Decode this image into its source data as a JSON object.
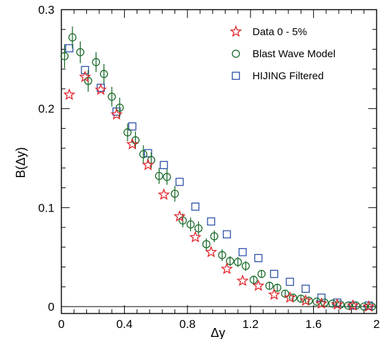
{
  "chart_data": {
    "type": "scatter",
    "xlabel": "Δy",
    "ylabel": "B(Δy)",
    "xlim": [
      0,
      2
    ],
    "ylim": [
      -0.007,
      0.3
    ],
    "x_ticks": [
      0,
      0.4,
      0.8,
      1.2,
      1.6,
      2
    ],
    "x_tick_labels": [
      "0",
      "0.4",
      "0.8",
      "1.2",
      "1.6",
      "2"
    ],
    "y_ticks": [
      0,
      0.1,
      0.2,
      0.3
    ],
    "y_tick_labels": [
      "0",
      "0.1",
      "0.2",
      "0.3"
    ],
    "zero_line": true,
    "grid": false,
    "legend_position": "top-right",
    "series": [
      {
        "name": "Data 0 - 5%",
        "marker": "star",
        "color": "#e0232a",
        "x": [
          0.05,
          0.15,
          0.25,
          0.35,
          0.45,
          0.55,
          0.65,
          0.75,
          0.85,
          0.95,
          1.05,
          1.15,
          1.25,
          1.35,
          1.45,
          1.55,
          1.65,
          1.75,
          1.85,
          1.95
        ],
        "y": [
          0.214,
          0.232,
          0.219,
          0.194,
          0.164,
          0.143,
          0.113,
          0.091,
          0.07,
          0.055,
          0.038,
          0.026,
          0.021,
          0.012,
          0.009,
          0.006,
          0.003,
          0.002,
          0.001,
          0.0
        ]
      },
      {
        "name": "Blast Wave Model",
        "marker": "circle",
        "color": "#1a6b2a",
        "x": [
          0.02,
          0.07,
          0.12,
          0.17,
          0.22,
          0.27,
          0.32,
          0.37,
          0.42,
          0.47,
          0.52,
          0.57,
          0.62,
          0.67,
          0.72,
          0.77,
          0.82,
          0.87,
          0.92,
          0.97,
          1.02,
          1.07,
          1.12,
          1.17,
          1.22,
          1.27,
          1.32,
          1.37,
          1.42,
          1.47,
          1.52,
          1.57,
          1.62,
          1.67,
          1.72,
          1.77,
          1.82,
          1.87,
          1.92,
          1.97
        ],
        "y": [
          0.253,
          0.272,
          0.257,
          0.228,
          0.247,
          0.235,
          0.212,
          0.201,
          0.176,
          0.168,
          0.154,
          0.148,
          0.132,
          0.131,
          0.114,
          0.087,
          0.083,
          0.079,
          0.063,
          0.071,
          0.052,
          0.046,
          0.045,
          0.041,
          0.027,
          0.033,
          0.021,
          0.019,
          0.013,
          0.009,
          0.008,
          0.006,
          0.005,
          0.004,
          0.003,
          0.002,
          0.001,
          0.001,
          0.0,
          0.0
        ],
        "error": [
          0.012,
          0.011,
          0.011,
          0.011,
          0.01,
          0.01,
          0.01,
          0.01,
          0.009,
          0.009,
          0.009,
          0.008,
          0.008,
          0.008,
          0.008,
          0.007,
          0.007,
          0.007,
          0.006,
          0.006,
          0.006,
          0.005,
          0.005,
          0.005,
          0.004,
          0.004,
          0.004,
          0.004,
          0.003,
          0.003,
          0.003,
          0.003,
          0.002,
          0.002,
          0.002,
          0.002,
          0.002,
          0.001,
          0.001,
          0.001
        ]
      },
      {
        "name": "HIJING Filtered",
        "marker": "square",
        "color": "#2b4fa8",
        "x": [
          0.05,
          0.15,
          0.25,
          0.35,
          0.45,
          0.55,
          0.65,
          0.75,
          0.85,
          0.95,
          1.05,
          1.15,
          1.25,
          1.35,
          1.45,
          1.55,
          1.65,
          1.75,
          1.85,
          1.95
        ],
        "y": [
          0.261,
          0.239,
          0.221,
          0.197,
          0.182,
          0.155,
          0.143,
          0.126,
          0.101,
          0.086,
          0.073,
          0.055,
          0.049,
          0.033,
          0.025,
          0.018,
          0.009,
          0.004,
          0.001,
          0.001
        ]
      }
    ]
  }
}
